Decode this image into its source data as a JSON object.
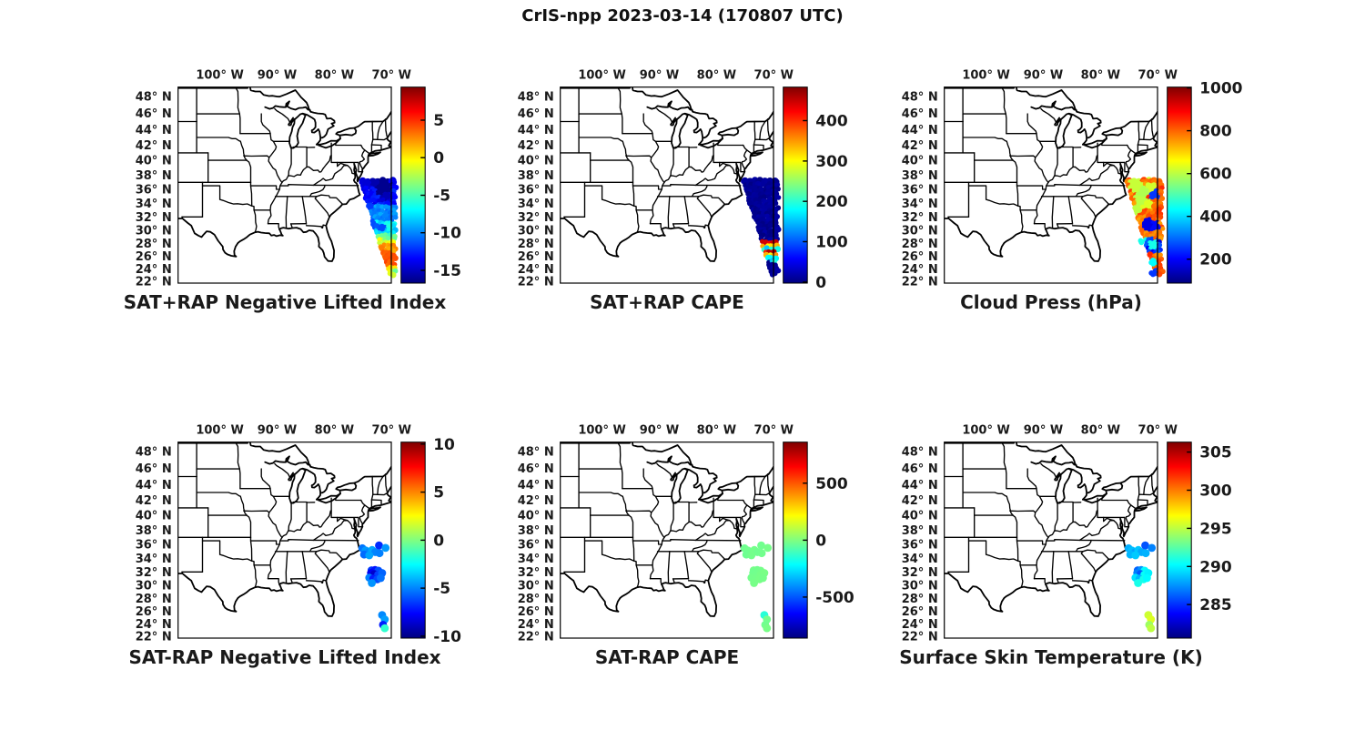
{
  "figure": {
    "title": "CrIS-npp 2023-03-14 (170807 UTC)"
  },
  "axes": {
    "lat_ticks": [
      48,
      46,
      44,
      42,
      40,
      38,
      36,
      34,
      32,
      30,
      28,
      26,
      24,
      22
    ],
    "lon_ticks": [
      100,
      90,
      80,
      70
    ],
    "lat_suffix": "N",
    "lon_suffix": "W",
    "degree": "°"
  },
  "map_extent": {
    "lon_west": 107.3,
    "lon_east": 70.05,
    "lat_south": 21.7,
    "lat_north": 49.1
  },
  "colors": {
    "outline": "#000000",
    "background": "#ffffff",
    "text": "#1a1a1a",
    "colormap": "jet"
  },
  "chart_data": [
    {
      "type": "scatter",
      "title": "SAT+RAP Negative Lifted Index",
      "row": 0,
      "col": 0,
      "colorbar": {
        "vmin": -16.7,
        "vmax": 9.4,
        "ticks": [
          5,
          0,
          -5,
          -10,
          -15
        ]
      },
      "data": {
        "kind": "swath",
        "bands": [
          [
            37.2,
            33.8,
            -13.4,
            1.1
          ],
          [
            33.8,
            31.2,
            -10.0,
            1.1
          ],
          [
            31.2,
            29.4,
            -7.4,
            1.4
          ],
          [
            29.4,
            28.6,
            -4.5,
            1.0
          ],
          [
            28.6,
            27.9,
            -1.2,
            1.0
          ],
          [
            27.9,
            26.7,
            2.3,
            0.7
          ],
          [
            26.7,
            24.2,
            3.9,
            0.6
          ],
          [
            24.2,
            23.7,
            1.2,
            1.0
          ],
          [
            23.7,
            22.4,
            -2.4,
            2.2
          ]
        ],
        "spots": [
          {
            "lon": 71.4,
            "lat": 36.3,
            "r": 5,
            "v": -16.3
          },
          {
            "lon": 72.6,
            "lat": 36.9,
            "r": 3.5,
            "v": -15.5
          },
          {
            "lon": 74.2,
            "lat": 36.9,
            "r": 3,
            "v": -14.5
          },
          {
            "lon": 70.9,
            "lat": 35.1,
            "r": 3,
            "v": -15.3
          },
          {
            "lon": 73.2,
            "lat": 30.9,
            "r": 2.2,
            "v": -11.5
          },
          {
            "lon": 72.4,
            "lat": 30.6,
            "r": 2,
            "v": -11.2
          },
          {
            "lon": 71.6,
            "lat": 30.35,
            "r": 2.2,
            "v": -11.5
          },
          {
            "lon": 73.9,
            "lat": 33.6,
            "r": 2.5,
            "v": -12
          }
        ]
      }
    },
    {
      "type": "scatter",
      "title": "SAT+RAP CAPE",
      "row": 0,
      "col": 1,
      "colorbar": {
        "vmin": -2.5,
        "vmax": 483,
        "ticks": [
          400,
          300,
          200,
          100,
          0
        ]
      },
      "data": {
        "kind": "swath",
        "bands": [
          [
            37.2,
            28.4,
            8,
            9
          ],
          [
            28.4,
            27.8,
            435,
            28
          ],
          [
            27.8,
            27.3,
            315,
            40
          ],
          [
            27.3,
            26.9,
            175,
            35
          ],
          [
            26.9,
            26.3,
            430,
            30
          ],
          [
            26.3,
            25.8,
            320,
            40
          ],
          [
            25.8,
            25.1,
            180,
            40
          ],
          [
            25.1,
            22.4,
            10,
            9
          ]
        ],
        "spots": []
      }
    },
    {
      "type": "scatter",
      "title": "Cloud Press (hPa)",
      "row": 0,
      "col": 2,
      "colorbar": {
        "vmin": 88,
        "vmax": 1004,
        "ticks": [
          1000,
          800,
          600,
          400,
          200
        ]
      },
      "data": {
        "kind": "swath",
        "bands": [
          [
            37.2,
            28.7,
            800,
            55
          ],
          [
            28.7,
            26.4,
            230,
            70
          ],
          [
            26.4,
            22.5,
            800,
            55
          ]
        ],
        "spots": [
          {
            "lon": 73.8,
            "lat": 36.5,
            "r": 4,
            "v": 610
          },
          {
            "lon": 72.5,
            "lat": 35.6,
            "r": 3.5,
            "v": 590
          },
          {
            "lon": 71.3,
            "lat": 36.2,
            "r": 3,
            "v": 620
          },
          {
            "lon": 73.0,
            "lat": 34.6,
            "r": 3.5,
            "v": 600
          },
          {
            "lon": 71.9,
            "lat": 33.8,
            "r": 3,
            "v": 630
          },
          {
            "lon": 73.5,
            "lat": 33.1,
            "r": 2.5,
            "v": 600
          },
          {
            "lon": 70.6,
            "lat": 35.2,
            "r": 3,
            "v": 250
          },
          {
            "lon": 71.9,
            "lat": 30.8,
            "r": 3.5,
            "v": 180
          },
          {
            "lon": 70.5,
            "lat": 30.5,
            "r": 3,
            "v": 210
          },
          {
            "lon": 72.8,
            "lat": 28.2,
            "r": 3,
            "v": 450
          },
          {
            "lon": 70.9,
            "lat": 27.6,
            "r": 3,
            "v": 450
          },
          {
            "lon": 70.9,
            "lat": 24.9,
            "r": 2.5,
            "v": 430
          },
          {
            "lon": 70.8,
            "lat": 23.3,
            "r": 3,
            "v": 250
          }
        ]
      }
    },
    {
      "type": "scatter",
      "title": "SAT-RAP Negative Lifted Index",
      "row": 1,
      "col": 0,
      "colorbar": {
        "vmin": -10.2,
        "vmax": 10.2,
        "ticks": [
          10,
          5,
          0,
          -5,
          -10
        ]
      },
      "data": {
        "kind": "points",
        "values_key": "nli"
      }
    },
    {
      "type": "scatter",
      "title": "SAT-RAP CAPE",
      "row": 1,
      "col": 1,
      "colorbar": {
        "vmin": -860,
        "vmax": 860,
        "ticks": [
          500,
          0,
          -500
        ]
      },
      "data": {
        "kind": "points",
        "values_key": "cape"
      }
    },
    {
      "type": "scatter",
      "title": "Surface Skin Temperature (K)",
      "row": 1,
      "col": 2,
      "colorbar": {
        "vmin": 280.6,
        "vmax": 306.3,
        "ticks": [
          305,
          300,
          295,
          290,
          285
        ]
      },
      "data": {
        "kind": "points",
        "values_key": "temp"
      }
    }
  ],
  "swath_outline": [
    [
      75.35,
      37.15
    ],
    [
      69.6,
      36.7
    ],
    [
      69.6,
      22.5
    ],
    [
      70.25,
      22.6
    ]
  ],
  "footprints": [
    {
      "lon": 75.1,
      "lat": 35.45,
      "nli": -5.3,
      "cape": -28,
      "temp": 288.2
    },
    {
      "lon": 74.55,
      "lat": 35.15,
      "nli": -4.6,
      "cape": -22,
      "temp": 288.6
    },
    {
      "lon": 74.0,
      "lat": 34.85,
      "nli": -4.9,
      "cape": -25,
      "temp": 287.9
    },
    {
      "lon": 74.8,
      "lat": 34.55,
      "nli": -5.5,
      "cape": -30,
      "temp": 288.4
    },
    {
      "lon": 73.4,
      "lat": 35.2,
      "nli": -4.3,
      "cape": -20,
      "temp": 288.8
    },
    {
      "lon": 72.85,
      "lat": 34.9,
      "nli": -5.0,
      "cape": -26,
      "temp": 288.1
    },
    {
      "lon": 72.2,
      "lat": 35.85,
      "nli": -6.8,
      "cape": -24,
      "temp": 285.9
    },
    {
      "lon": 71.05,
      "lat": 35.5,
      "nli": -4.6,
      "cape": -16,
      "temp": 287.1
    },
    {
      "lon": 73.9,
      "lat": 34.45,
      "nli": -4.4,
      "cape": -19,
      "temp": 288.9
    },
    {
      "lon": 72.1,
      "lat": 34.75,
      "nli": -5.1,
      "cape": -23,
      "temp": 288.3
    },
    {
      "lon": 73.5,
      "lat": 32.25,
      "nli": -6.5,
      "cape": -16,
      "temp": 286.3
    },
    {
      "lon": 72.9,
      "lat": 32.3,
      "nli": -7.3,
      "cape": -21,
      "temp": 287.5
    },
    {
      "lon": 72.3,
      "lat": 32.2,
      "nli": -6.1,
      "cape": -18,
      "temp": 290.1
    },
    {
      "lon": 73.6,
      "lat": 31.85,
      "nli": -7.9,
      "cape": -26,
      "temp": 287.0
    },
    {
      "lon": 73.0,
      "lat": 31.7,
      "nli": -8.7,
      "cape": -22,
      "temp": 286.0
    },
    {
      "lon": 72.35,
      "lat": 31.6,
      "nli": -6.4,
      "cape": -15,
      "temp": 290.4
    },
    {
      "lon": 71.65,
      "lat": 31.85,
      "nli": -5.7,
      "cape": -11,
      "temp": 289.9
    },
    {
      "lon": 73.9,
      "lat": 31.15,
      "nli": -5.1,
      "cape": -20,
      "temp": 289.5
    },
    {
      "lon": 73.2,
      "lat": 31.0,
      "nli": -7.1,
      "cape": -17,
      "temp": 288.4
    },
    {
      "lon": 72.5,
      "lat": 30.9,
      "nli": -6.2,
      "cape": -13,
      "temp": 290.7
    },
    {
      "lon": 71.9,
      "lat": 31.1,
      "nli": -5.4,
      "cape": -16,
      "temp": 290.2
    },
    {
      "lon": 73.45,
      "lat": 30.35,
      "nli": -4.7,
      "cape": -14,
      "temp": 290.8
    },
    {
      "lon": 71.65,
      "lat": 25.4,
      "nli": -4.9,
      "cape": -150,
      "temp": 295.4
    },
    {
      "lon": 71.2,
      "lat": 24.7,
      "nli": -4.5,
      "cape": -22,
      "temp": 295.8
    },
    {
      "lon": 71.5,
      "lat": 23.85,
      "nli": -7.1,
      "cape": -26,
      "temp": 294.2
    },
    {
      "lon": 71.2,
      "lat": 23.3,
      "nli": -1.6,
      "cape": -12,
      "temp": 295.0
    }
  ]
}
